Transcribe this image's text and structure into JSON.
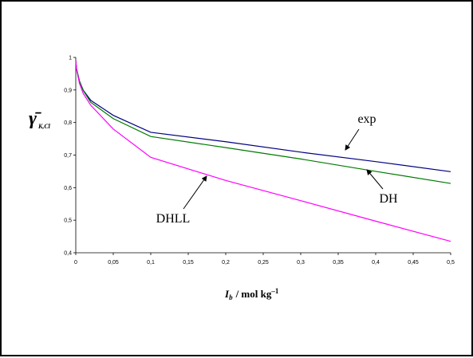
{
  "chart_data": {
    "type": "line",
    "xlabel": {
      "symbol": "I",
      "subscript": "b",
      "unit": "/ mol kg",
      "superscript": "–1"
    },
    "ylabel": {
      "symbol": "γ̄",
      "subscript": "K,Cl"
    },
    "xlim": [
      0,
      0.5
    ],
    "ylim": [
      0.4,
      1
    ],
    "xticks": [
      "0",
      "0,05",
      "0,1",
      "0,15",
      "0,2",
      "0,25",
      "0,3",
      "0,35",
      "0,4",
      "0,45",
      "0,5"
    ],
    "yticks": [
      "0,4",
      "0,5",
      "0,6",
      "0,7",
      "0,8",
      "0,9",
      "1"
    ],
    "grid": false,
    "series": [
      {
        "name": "exp",
        "color": "#000080",
        "x": [
          0,
          0.001,
          0.005,
          0.01,
          0.02,
          0.05,
          0.1,
          0.2,
          0.3,
          0.4,
          0.5
        ],
        "y": [
          0.99,
          0.965,
          0.927,
          0.899,
          0.868,
          0.822,
          0.77,
          0.741,
          0.709,
          0.68,
          0.649
        ]
      },
      {
        "name": "DH",
        "color": "#007A00",
        "x": [
          0,
          0.001,
          0.005,
          0.01,
          0.02,
          0.05,
          0.1,
          0.2,
          0.3,
          0.4,
          0.5
        ],
        "y": [
          0.99,
          0.965,
          0.925,
          0.898,
          0.862,
          0.812,
          0.757,
          0.723,
          0.688,
          0.65,
          0.613
        ]
      },
      {
        "name": "DHLL",
        "color": "#FF00FF",
        "x": [
          0,
          0.001,
          0.005,
          0.01,
          0.02,
          0.05,
          0.1,
          0.2,
          0.3,
          0.4,
          0.5
        ],
        "y": [
          0.99,
          0.963,
          0.92,
          0.889,
          0.853,
          0.78,
          0.693,
          0.622,
          0.56,
          0.497,
          0.435
        ]
      }
    ],
    "annotations": [
      {
        "text": "exp",
        "series": "exp"
      },
      {
        "text": "DH",
        "series": "DH"
      },
      {
        "text": "DHLL",
        "series": "DHLL"
      }
    ]
  }
}
